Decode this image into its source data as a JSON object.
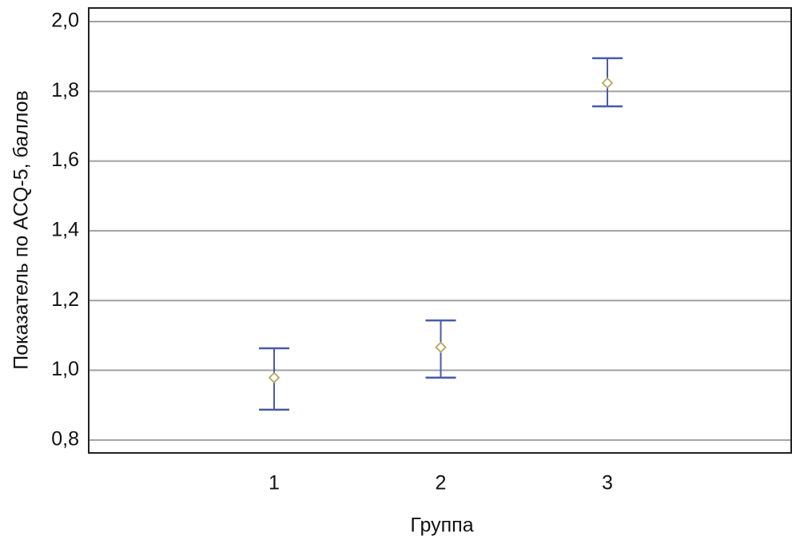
{
  "chart_data": {
    "type": "errorbar",
    "x_label": "Группа",
    "y_label": "Показатель по ACQ-5, баллов",
    "categories": [
      "1",
      "2",
      "3"
    ],
    "series": [
      {
        "color": "#4a5aa8",
        "marker_color": "#b5a55c",
        "values": [
          0.979,
          1.066,
          1.824
        ],
        "lower": [
          0.887,
          0.979,
          1.757
        ],
        "upper": [
          1.063,
          1.143,
          1.895
        ]
      }
    ],
    "ylim": [
      0.763,
      2.039
    ],
    "yticks": [
      {
        "value": 0.8,
        "label": "0,8"
      },
      {
        "value": 1.0,
        "label": "1,0"
      },
      {
        "value": 1.2,
        "label": "1,2"
      },
      {
        "value": 1.4,
        "label": "1,4"
      },
      {
        "value": 1.6,
        "label": "1,6"
      },
      {
        "value": 1.8,
        "label": "1,8"
      },
      {
        "value": 2.0,
        "label": "2,0"
      }
    ],
    "grid": true
  }
}
